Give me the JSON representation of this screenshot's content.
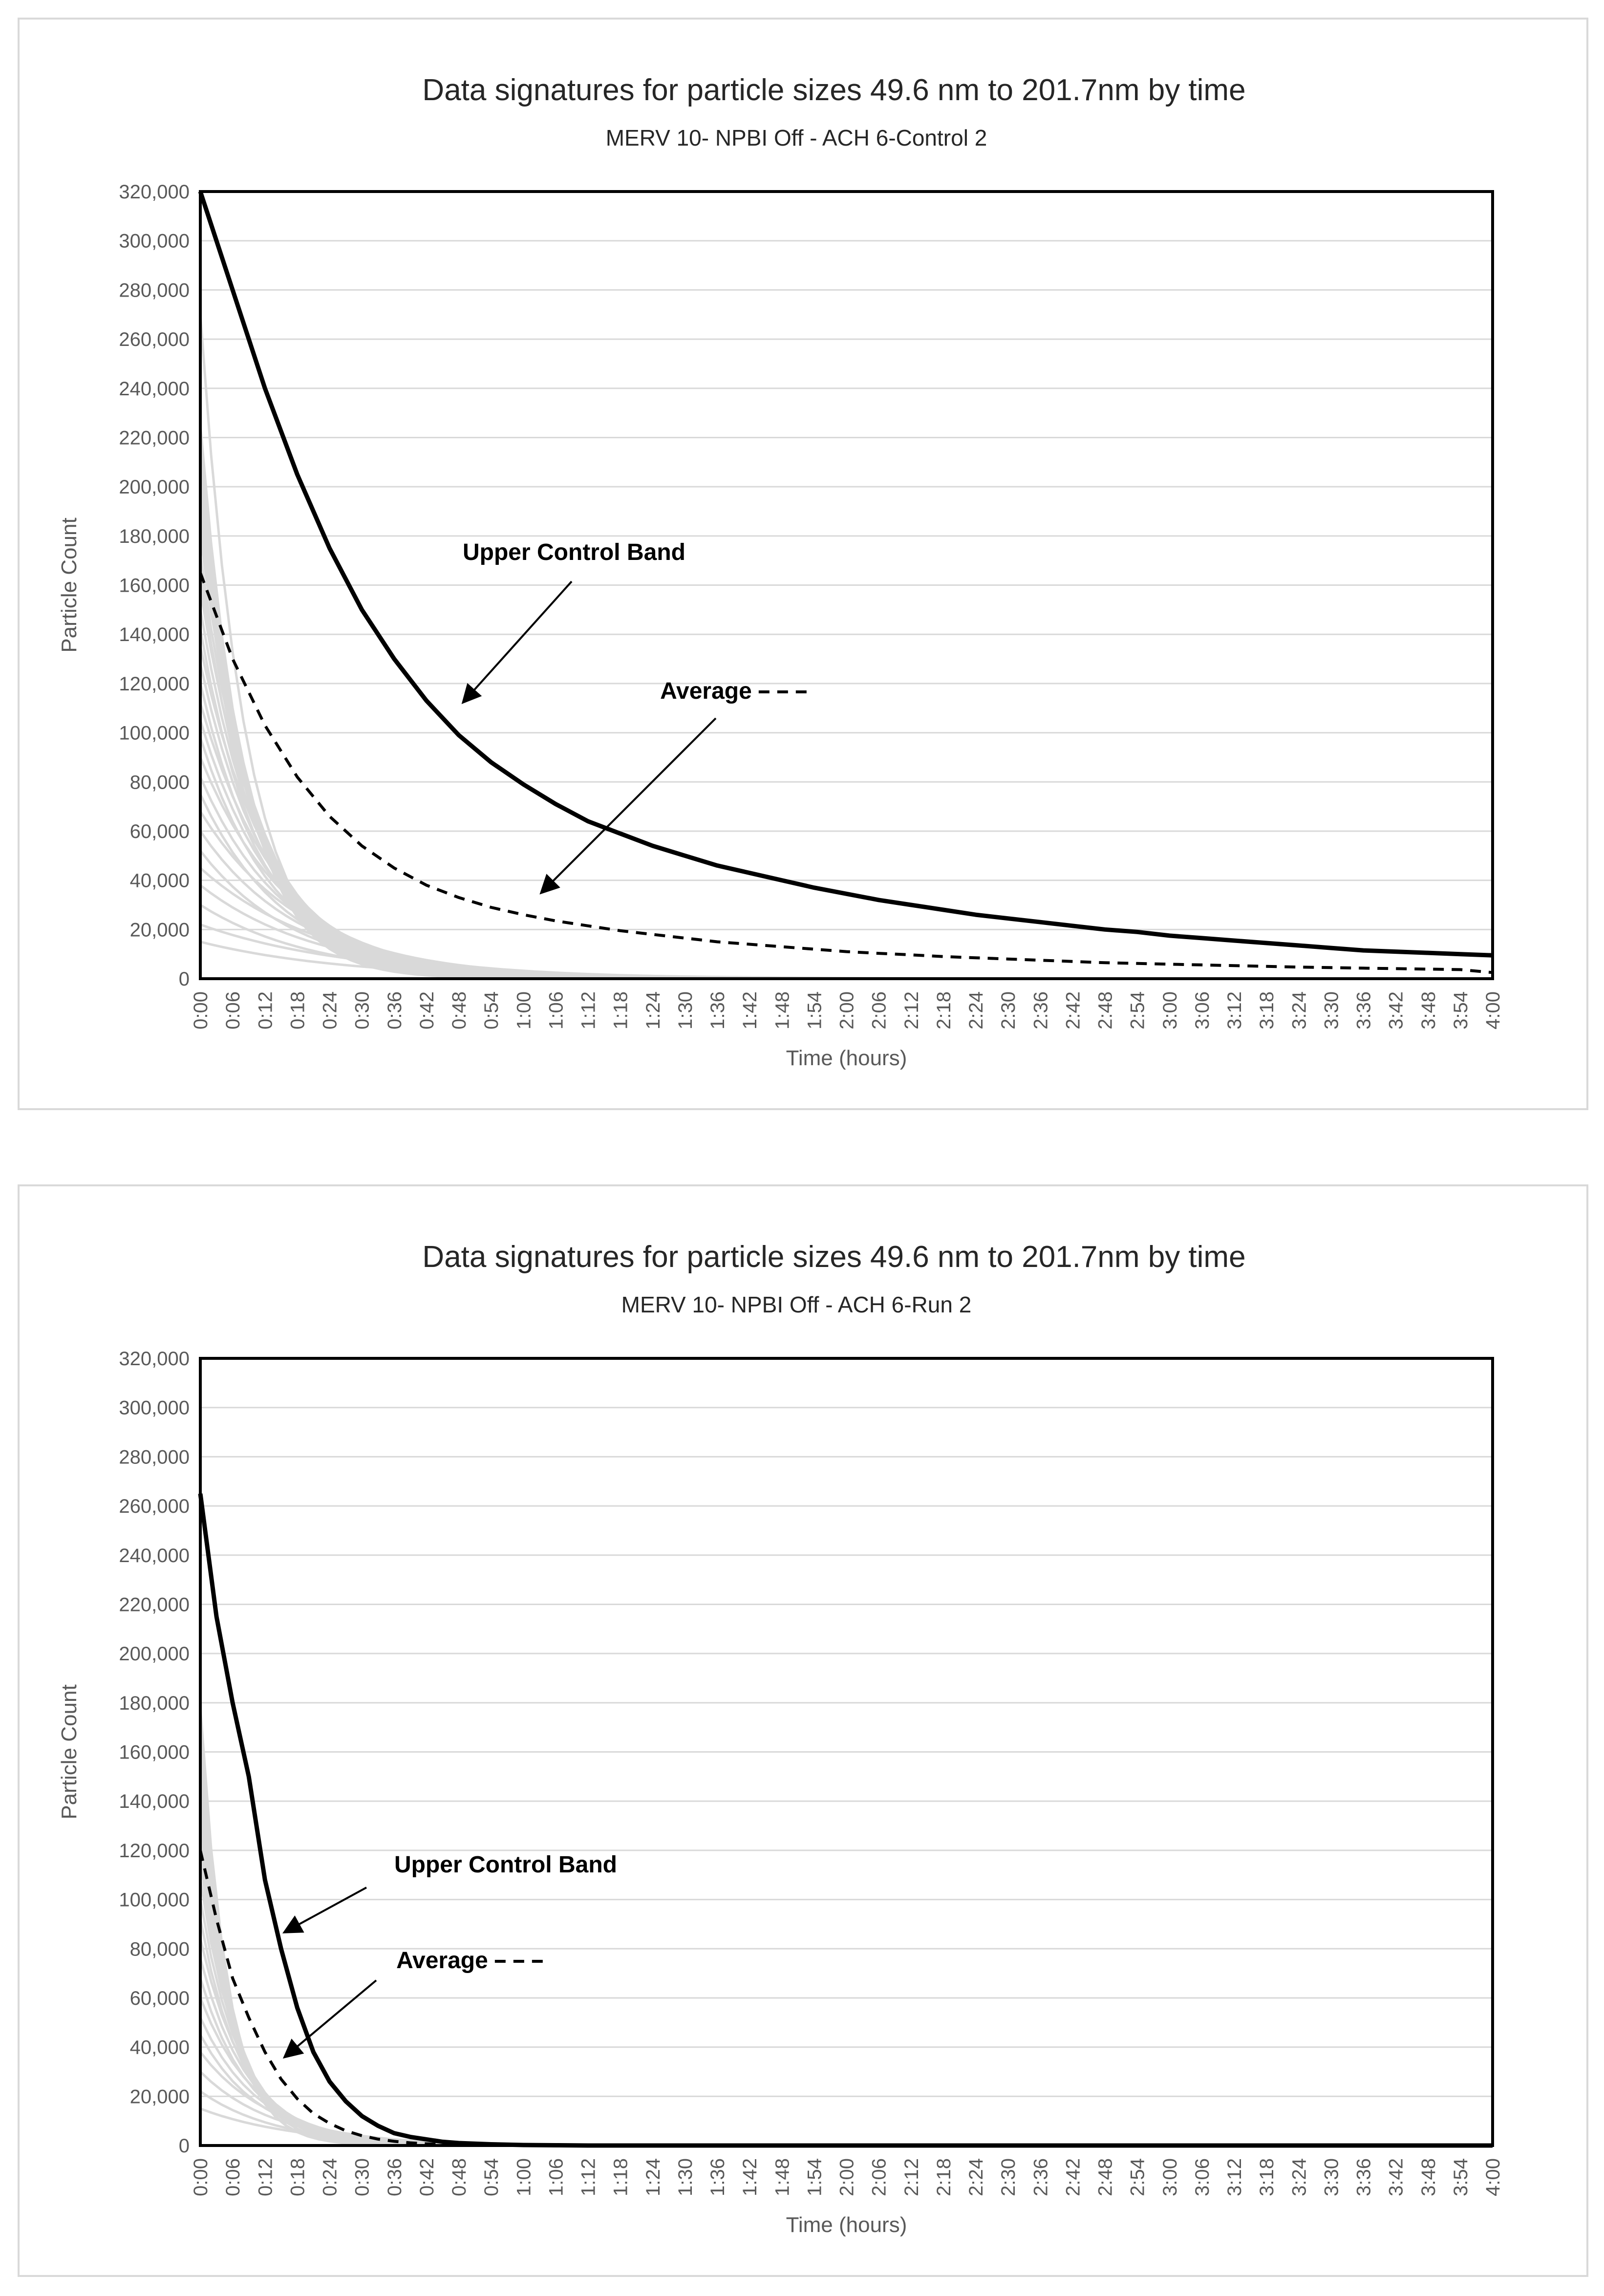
{
  "colors": {
    "signature_line": "#d9d9d9",
    "upper_band": "#000000",
    "average": "#000000",
    "gridline": "#d9d9d9",
    "text": "#262626",
    "axis_label": "#595959"
  },
  "chart_data": [
    {
      "type": "line",
      "title": "Data signatures for particle sizes 49.6 nm to 201.7nm by time",
      "subtitle": "MERV 10- NPBI Off - ACH 6-Control 2",
      "xlabel": "Time (hours)",
      "ylabel": "Particle Count",
      "ylim": [
        0,
        320000
      ],
      "y_ticks": [
        0,
        20000,
        40000,
        60000,
        80000,
        100000,
        120000,
        140000,
        160000,
        180000,
        200000,
        220000,
        240000,
        260000,
        280000,
        300000,
        320000
      ],
      "y_tick_labels": [
        "0",
        "20,000",
        "40,000",
        "60,000",
        "80,000",
        "100,000",
        "120,000",
        "140,000",
        "160,000",
        "180,000",
        "200,000",
        "220,000",
        "240,000",
        "260,000",
        "280,000",
        "300,000",
        "320,000"
      ],
      "x_tick_labels": [
        "0:00",
        "0:06",
        "0:12",
        "0:18",
        "0:24",
        "0:30",
        "0:36",
        "0:42",
        "0:48",
        "0:54",
        "1:00",
        "1:06",
        "1:12",
        "1:18",
        "1:24",
        "1:30",
        "1:36",
        "1:42",
        "1:48",
        "1:54",
        "2:00",
        "2:06",
        "2:12",
        "2:18",
        "2:24",
        "2:30",
        "2:36",
        "2:42",
        "2:48",
        "2:54",
        "3:00",
        "3:06",
        "3:12",
        "3:18",
        "3:24",
        "3:30",
        "3:36",
        "3:42",
        "3:48",
        "3:54",
        "4:00"
      ],
      "grid": true,
      "legend": "none",
      "series": [
        {
          "name": "Upper Control Band",
          "style": "solid-bold",
          "x": [
            "0:00",
            "0:06",
            "0:12",
            "0:18",
            "0:24",
            "0:30",
            "0:36",
            "0:42",
            "0:48",
            "0:54",
            "1:00",
            "1:06",
            "1:12",
            "1:18",
            "1:24",
            "1:30",
            "1:36",
            "1:42",
            "1:48",
            "1:54",
            "2:00",
            "2:06",
            "2:12",
            "2:18",
            "2:24",
            "2:30",
            "2:36",
            "2:42",
            "2:48",
            "2:54",
            "3:00",
            "3:06",
            "3:12",
            "3:18",
            "3:24",
            "3:30",
            "3:36",
            "3:42",
            "3:48",
            "3:54",
            "4:00"
          ],
          "values": [
            320000,
            280000,
            240000,
            205000,
            175000,
            150000,
            130000,
            113000,
            99000,
            88000,
            79000,
            71000,
            64000,
            59000,
            54000,
            50000,
            46000,
            43000,
            40000,
            37000,
            34500,
            32000,
            30000,
            28000,
            26000,
            24500,
            23000,
            21500,
            20000,
            19000,
            17500,
            16500,
            15500,
            14500,
            13500,
            12500,
            11500,
            11000,
            10500,
            10000,
            9500
          ]
        },
        {
          "name": "Average",
          "style": "dashed",
          "x": [
            "0:00",
            "0:06",
            "0:12",
            "0:18",
            "0:24",
            "0:30",
            "0:36",
            "0:42",
            "0:48",
            "0:54",
            "1:00",
            "1:06",
            "1:12",
            "1:18",
            "1:24",
            "1:30",
            "1:36",
            "1:42",
            "1:48",
            "1:54",
            "2:00",
            "2:06",
            "2:12",
            "2:18",
            "2:24",
            "2:30",
            "2:36",
            "2:42",
            "2:48",
            "2:54",
            "3:00",
            "3:06",
            "3:12",
            "3:18",
            "3:24",
            "3:30",
            "3:36",
            "3:42",
            "3:48",
            "3:54",
            "4:00"
          ],
          "values": [
            165000,
            130000,
            103000,
            82000,
            66000,
            54000,
            45000,
            38000,
            33000,
            29000,
            26000,
            23500,
            21500,
            19500,
            18000,
            16500,
            15000,
            14000,
            13000,
            12000,
            11000,
            10300,
            9700,
            9000,
            8500,
            8000,
            7500,
            7000,
            6500,
            6200,
            5900,
            5600,
            5300,
            5000,
            4700,
            4500,
            4300,
            4100,
            3900,
            3700,
            2500
          ]
        }
      ],
      "signature_peaks": [
        270000,
        225000,
        220000,
        212000,
        205000,
        200000,
        195000,
        190000,
        185000,
        180000,
        172000,
        165000,
        158000,
        150000,
        142000,
        135000,
        128000,
        120000,
        112000,
        105000,
        98000,
        90000,
        82000,
        75000,
        68000,
        60000,
        52000,
        45000,
        38000,
        30000,
        22000,
        15000
      ],
      "annotations": [
        {
          "text": "Upper Control Band",
          "points_to": "Upper Control Band"
        },
        {
          "text": "Average",
          "points_to": "Average"
        }
      ]
    },
    {
      "type": "line",
      "title": "Data signatures for particle sizes 49.6 nm to 201.7nm by time",
      "subtitle": "MERV 10- NPBI Off - ACH 6-Run 2",
      "xlabel": "Time (hours)",
      "ylabel": "Particle Count",
      "ylim": [
        0,
        320000
      ],
      "y_ticks": [
        0,
        20000,
        40000,
        60000,
        80000,
        100000,
        120000,
        140000,
        160000,
        180000,
        200000,
        220000,
        240000,
        260000,
        280000,
        300000,
        320000
      ],
      "y_tick_labels": [
        "0",
        "20,000",
        "40,000",
        "60,000",
        "80,000",
        "100,000",
        "120,000",
        "140,000",
        "160,000",
        "180,000",
        "200,000",
        "220,000",
        "240,000",
        "260,000",
        "280,000",
        "300,000",
        "320,000"
      ],
      "x_tick_labels": [
        "0:00",
        "0:06",
        "0:12",
        "0:18",
        "0:24",
        "0:30",
        "0:36",
        "0:42",
        "0:48",
        "0:54",
        "1:00",
        "1:06",
        "1:12",
        "1:18",
        "1:24",
        "1:30",
        "1:36",
        "1:42",
        "1:48",
        "1:54",
        "2:00",
        "2:06",
        "2:12",
        "2:18",
        "2:24",
        "2:30",
        "2:36",
        "2:42",
        "2:48",
        "2:54",
        "3:00",
        "3:06",
        "3:12",
        "3:18",
        "3:24",
        "3:30",
        "3:36",
        "3:42",
        "3:48",
        "3:54",
        "4:00"
      ],
      "grid": true,
      "legend": "none",
      "series": [
        {
          "name": "Upper Control Band",
          "style": "solid-bold",
          "x": [
            "0:00",
            "0:03",
            "0:06",
            "0:09",
            "0:12",
            "0:15",
            "0:18",
            "0:21",
            "0:24",
            "0:27",
            "0:30",
            "0:33",
            "0:36",
            "0:39",
            "0:42",
            "0:45",
            "0:48",
            "0:54",
            "1:00",
            "1:06",
            "1:12",
            "1:30",
            "2:00",
            "2:30",
            "3:00",
            "3:30",
            "4:00"
          ],
          "values": [
            265000,
            215000,
            180000,
            150000,
            108000,
            80000,
            56000,
            38000,
            26000,
            18000,
            12000,
            8000,
            5000,
            3500,
            2500,
            1500,
            1000,
            500,
            200,
            100,
            0,
            0,
            0,
            0,
            0,
            0,
            0
          ]
        },
        {
          "name": "Average",
          "style": "dashed",
          "x": [
            "0:00",
            "0:03",
            "0:06",
            "0:09",
            "0:12",
            "0:15",
            "0:18",
            "0:21",
            "0:24",
            "0:27",
            "0:30",
            "0:33",
            "0:36",
            "0:39",
            "0:42",
            "0:45",
            "0:48",
            "0:54",
            "1:00",
            "1:06",
            "1:12",
            "1:30",
            "2:00",
            "2:30",
            "3:00",
            "3:30",
            "4:00"
          ],
          "values": [
            120000,
            92000,
            68000,
            52000,
            38000,
            27000,
            19000,
            13000,
            9000,
            6000,
            4000,
            2600,
            1700,
            1100,
            700,
            400,
            250,
            100,
            50,
            0,
            0,
            0,
            0,
            0,
            0,
            0,
            0
          ]
        }
      ],
      "signature_peaks": [
        178000,
        170000,
        162000,
        155000,
        148000,
        140000,
        132000,
        124000,
        116000,
        108000,
        100000,
        92000,
        84000,
        76000,
        68000,
        60000,
        52000,
        45000,
        38000,
        30000,
        22000,
        15000
      ],
      "annotations": [
        {
          "text": "Upper Control Band",
          "points_to": "Upper Control Band"
        },
        {
          "text": "Average",
          "points_to": "Average"
        }
      ]
    }
  ]
}
